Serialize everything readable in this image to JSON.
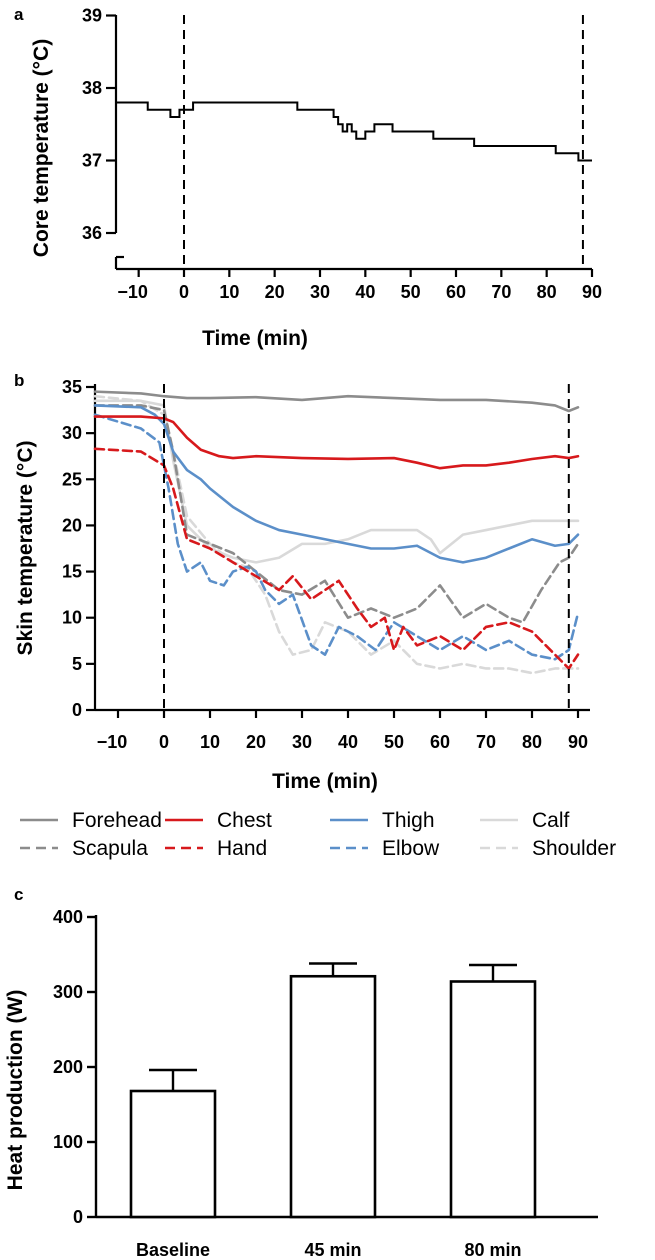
{
  "chart_data": [
    {
      "panel": "a",
      "type": "line",
      "xlabel": "Time (min)",
      "ylabel": "Core temperature (°C)",
      "xlim": [
        -15,
        90
      ],
      "ylim": [
        35.5,
        39
      ],
      "yaxis_break": [
        35.6,
        36.0
      ],
      "xticks": [
        -10,
        0,
        10,
        20,
        30,
        40,
        50,
        60,
        70,
        80,
        90
      ],
      "yticks": [
        36,
        37,
        38,
        39
      ],
      "vlines": [
        0,
        88
      ],
      "series": [
        {
          "color": "#000000",
          "dash": "solid",
          "step": true,
          "x": [
            -15,
            -8,
            -3,
            -1,
            0,
            1,
            2,
            10,
            20,
            25,
            30,
            33,
            34,
            35,
            36,
            37,
            38,
            40,
            42,
            44,
            46,
            50,
            55,
            60,
            64,
            68,
            75,
            80,
            82,
            85,
            87,
            88,
            90
          ],
          "y": [
            37.8,
            37.7,
            37.6,
            37.7,
            37.7,
            37.7,
            37.8,
            37.8,
            37.8,
            37.7,
            37.7,
            37.6,
            37.5,
            37.4,
            37.5,
            37.4,
            37.3,
            37.4,
            37.5,
            37.5,
            37.4,
            37.4,
            37.3,
            37.3,
            37.2,
            37.2,
            37.2,
            37.2,
            37.1,
            37.1,
            37.0,
            37.0,
            37.0
          ]
        }
      ]
    },
    {
      "panel": "b",
      "type": "line",
      "xlabel": "Time (min)",
      "ylabel": "Skin temperature (°C)",
      "xlim": [
        -15,
        90
      ],
      "ylim": [
        0,
        35
      ],
      "xticks": [
        -10,
        0,
        10,
        20,
        30,
        40,
        50,
        60,
        70,
        80,
        90
      ],
      "yticks": [
        0,
        5,
        10,
        15,
        20,
        25,
        30,
        35
      ],
      "vlines": [
        0,
        88
      ],
      "legend_position": "below",
      "series": [
        {
          "name": "Forehead",
          "color": "#8c8c8c",
          "dash": "solid",
          "x": [
            -15,
            -5,
            0,
            5,
            10,
            20,
            30,
            40,
            50,
            60,
            70,
            80,
            85,
            88,
            90
          ],
          "y": [
            34.5,
            34.3,
            34.0,
            33.8,
            33.8,
            33.9,
            33.6,
            34.0,
            33.8,
            33.6,
            33.6,
            33.3,
            33.0,
            32.4,
            32.8
          ]
        },
        {
          "name": "Scapula",
          "color": "#8c8c8c",
          "dash": "dashed",
          "x": [
            -15,
            -5,
            0,
            2,
            5,
            10,
            15,
            20,
            25,
            30,
            35,
            40,
            45,
            50,
            55,
            60,
            65,
            70,
            75,
            78,
            82,
            86,
            88,
            90
          ],
          "y": [
            33.0,
            33.0,
            32.5,
            28.0,
            19.0,
            18.0,
            17.0,
            15.0,
            13.0,
            12.5,
            14.0,
            10.0,
            11.0,
            10.0,
            11.0,
            13.5,
            10.0,
            11.5,
            10.0,
            9.5,
            13.0,
            16.0,
            16.5,
            18.0
          ]
        },
        {
          "name": "Chest",
          "color": "#d7191c",
          "dash": "solid",
          "x": [
            -15,
            -5,
            0,
            2,
            5,
            8,
            12,
            15,
            20,
            30,
            40,
            50,
            55,
            60,
            65,
            70,
            75,
            80,
            85,
            88,
            90
          ],
          "y": [
            31.8,
            31.8,
            31.6,
            31.2,
            29.5,
            28.2,
            27.5,
            27.3,
            27.5,
            27.3,
            27.2,
            27.3,
            26.8,
            26.2,
            26.5,
            26.5,
            26.8,
            27.2,
            27.5,
            27.3,
            27.5
          ]
        },
        {
          "name": "Hand",
          "color": "#d7191c",
          "dash": "dashed",
          "x": [
            -15,
            -5,
            0,
            2,
            5,
            10,
            15,
            20,
            25,
            28,
            32,
            38,
            42,
            45,
            48,
            50,
            52,
            55,
            60,
            65,
            70,
            75,
            80,
            85,
            88,
            90
          ],
          "y": [
            28.3,
            28.0,
            26.5,
            24.0,
            18.5,
            17.5,
            16.0,
            14.5,
            13.0,
            14.5,
            12.0,
            14.0,
            11.0,
            9.0,
            10.0,
            6.5,
            9.0,
            7.0,
            8.0,
            6.5,
            9.0,
            9.5,
            8.5,
            6.0,
            4.5,
            6.0
          ]
        },
        {
          "name": "Thigh",
          "color": "#5b8fc9",
          "dash": "solid",
          "x": [
            -15,
            -5,
            -2,
            0,
            2,
            5,
            8,
            10,
            15,
            20,
            25,
            30,
            35,
            40,
            45,
            50,
            55,
            60,
            65,
            70,
            75,
            80,
            85,
            88,
            90
          ],
          "y": [
            33.0,
            32.8,
            32.0,
            31.0,
            28.0,
            26.0,
            25.0,
            24.0,
            22.0,
            20.5,
            19.5,
            19.0,
            18.5,
            18.0,
            17.5,
            17.5,
            17.8,
            16.5,
            16.0,
            16.5,
            17.5,
            18.5,
            17.8,
            18.0,
            19.0
          ]
        },
        {
          "name": "Elbow",
          "color": "#5b8fc9",
          "dash": "dashed",
          "x": [
            -15,
            -5,
            -1,
            1,
            3,
            5,
            8,
            10,
            13,
            15,
            18,
            20,
            22,
            25,
            28,
            32,
            35,
            38,
            42,
            46,
            50,
            55,
            60,
            65,
            70,
            75,
            80,
            85,
            88,
            90
          ],
          "y": [
            32.0,
            30.5,
            29.0,
            24.0,
            18.0,
            15.0,
            16.0,
            14.0,
            13.5,
            15.0,
            15.5,
            15.0,
            13.0,
            11.5,
            12.5,
            7.0,
            6.0,
            9.0,
            8.0,
            6.5,
            9.5,
            8.0,
            6.5,
            8.0,
            6.5,
            7.5,
            6.0,
            5.5,
            6.5,
            10.5
          ]
        },
        {
          "name": "Calf",
          "color": "#d9d9d9",
          "dash": "solid",
          "x": [
            -15,
            -5,
            0,
            2,
            5,
            10,
            15,
            20,
            25,
            30,
            35,
            40,
            45,
            50,
            55,
            58,
            60,
            65,
            70,
            75,
            80,
            85,
            90
          ],
          "y": [
            33.5,
            33.5,
            33.0,
            27.0,
            20.0,
            17.5,
            16.5,
            16.0,
            16.5,
            18.0,
            18.0,
            18.5,
            19.5,
            19.5,
            19.5,
            18.5,
            17.0,
            19.0,
            19.5,
            20.0,
            20.5,
            20.5,
            20.5
          ]
        },
        {
          "name": "Shoulder",
          "color": "#d9d9d9",
          "dash": "dashed",
          "x": [
            -15,
            -5,
            0,
            2,
            5,
            10,
            15,
            18,
            22,
            25,
            28,
            32,
            35,
            40,
            45,
            50,
            55,
            60,
            65,
            70,
            75,
            80,
            85,
            88,
            90
          ],
          "y": [
            34.0,
            33.5,
            32.0,
            28.0,
            21.0,
            18.0,
            16.0,
            15.5,
            12.5,
            8.5,
            6.0,
            6.5,
            9.5,
            8.5,
            6.0,
            7.5,
            5.0,
            4.5,
            5.0,
            4.5,
            4.5,
            4.0,
            4.5,
            4.5,
            4.5
          ]
        }
      ]
    },
    {
      "panel": "c",
      "type": "bar",
      "ylabel": "Heat production (W)",
      "ylim": [
        0,
        400
      ],
      "yticks": [
        0,
        100,
        200,
        300,
        400
      ],
      "categories": [
        "Baseline",
        "45 min",
        "80 min"
      ],
      "values": [
        168,
        321,
        314
      ],
      "error": [
        28,
        17,
        22
      ]
    }
  ]
}
